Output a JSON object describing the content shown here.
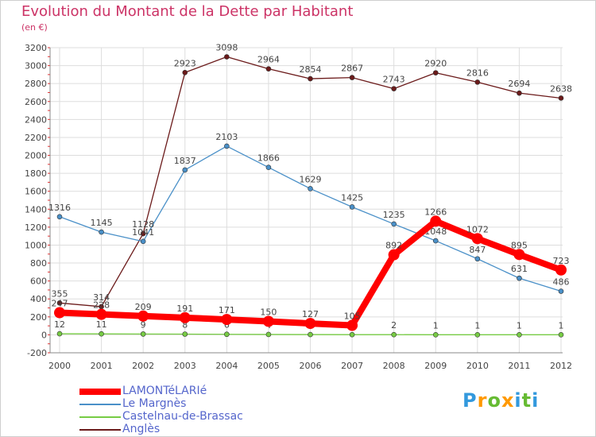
{
  "chart_data": {
    "type": "line",
    "title": "Evolution du Montant de la Dette par Habitant",
    "subtitle": "(en €)",
    "xlabel": "",
    "ylabel": "",
    "ylim": [
      -200,
      3200
    ],
    "yticks": [
      -200,
      0,
      200,
      400,
      600,
      800,
      1000,
      1200,
      1400,
      1600,
      1800,
      2000,
      2200,
      2400,
      2600,
      2800,
      3000,
      3200
    ],
    "categories": [
      "2000",
      "2001",
      "2002",
      "2003",
      "2004",
      "2005",
      "2006",
      "2007",
      "2008",
      "2009",
      "2010",
      "2011",
      "2012"
    ],
    "grid": true,
    "legend_position": "bottom-left",
    "series": [
      {
        "name": "Anglès",
        "color": "#6b1a1a",
        "values": [
          355,
          314,
          1128,
          2923,
          3098,
          2964,
          2854,
          2867,
          2743,
          2920,
          2816,
          2694,
          2638
        ]
      },
      {
        "name": "Le Margnès",
        "color": "#4a90c8",
        "values": [
          1316,
          1145,
          1041,
          1837,
          2103,
          1866,
          1629,
          1425,
          1235,
          1048,
          847,
          631,
          486
        ]
      },
      {
        "name": "Castelnau-de-Brassac",
        "color": "#77cc44",
        "values": [
          12,
          11,
          9,
          8,
          6,
          4,
          3,
          2,
          2,
          1,
          1,
          1,
          1
        ]
      },
      {
        "name": "LAMONTéLARIé",
        "color": "#ff0000",
        "values": [
          247,
          228,
          209,
          191,
          171,
          150,
          127,
          105,
          892,
          1266,
          1072,
          895,
          723
        ]
      }
    ],
    "value_labels": {
      "Anglès": [
        "355",
        "314",
        "",
        "2923",
        "3098",
        "2964",
        "2854",
        "2867",
        "2743",
        "2920",
        "2816",
        "2694",
        "2638"
      ],
      "Le Margnès": [
        "1316",
        "1145",
        "1041",
        "1837",
        "2103",
        "1866",
        "1629",
        "1425",
        "1235",
        "1048",
        "847",
        "631",
        "486"
      ],
      "Castelnau-de-Brassac": [
        "12",
        "11",
        "9",
        "8",
        "6",
        "4",
        "",
        "",
        "2",
        "1",
        "1",
        "1",
        "1"
      ],
      "LAMONTéLARIé": [
        "247",
        "228",
        "209",
        "191",
        "171",
        "150",
        "127",
        "105",
        "892",
        "1266",
        "1072",
        "895",
        "723"
      ]
    },
    "extra_labels": [
      "1128"
    ]
  },
  "legend": {
    "items": [
      {
        "label": "LAMONTéLARIé",
        "color": "#ff0000",
        "thick": true
      },
      {
        "label": "Le Margnès",
        "color": "#4a90c8",
        "thick": false
      },
      {
        "label": "Castelnau-de-Brassac",
        "color": "#77cc44",
        "thick": false
      },
      {
        "label": "Anglès",
        "color": "#6b1a1a",
        "thick": false
      }
    ]
  },
  "logo": {
    "letters": [
      "P",
      "r",
      "o",
      "x",
      "i",
      "t",
      "i"
    ],
    "colors": [
      "#3399dd",
      "#ff9900",
      "#66bb33",
      "#ff9900",
      "#3399dd",
      "#66bb33",
      "#3399dd"
    ]
  }
}
